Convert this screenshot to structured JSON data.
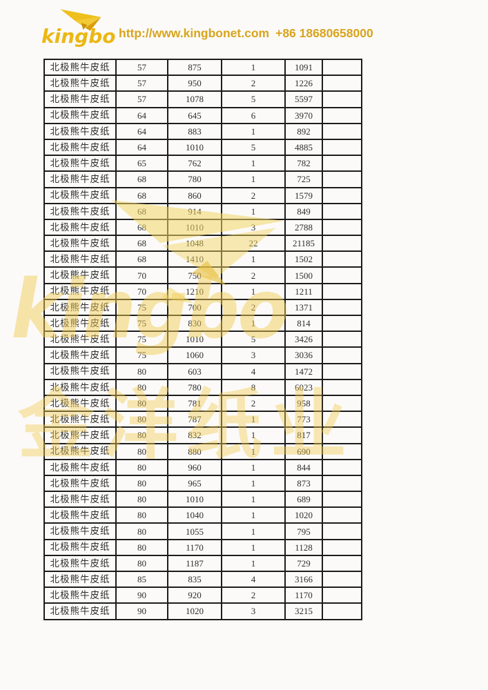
{
  "header": {
    "logo_text": "kingbo",
    "website": "http://www.kingbonet.com",
    "phone": "+86 18680658000"
  },
  "watermarks": {
    "script_text": "kingbo",
    "cjk_text": "金洋纸业"
  },
  "colors": {
    "brand_gold": "#ecb714",
    "contact_text": "#d8a41c",
    "watermark_yellow": "#f2cc52",
    "table_border": "#1c1c1c"
  },
  "table": {
    "rows": [
      [
        "北极熊牛皮纸",
        "57",
        "875",
        "1",
        "1091",
        ""
      ],
      [
        "北极熊牛皮纸",
        "57",
        "950",
        "2",
        "1226",
        ""
      ],
      [
        "北极熊牛皮纸",
        "57",
        "1078",
        "5",
        "5597",
        ""
      ],
      [
        "北极熊牛皮纸",
        "64",
        "645",
        "6",
        "3970",
        ""
      ],
      [
        "北极熊牛皮纸",
        "64",
        "883",
        "1",
        "892",
        ""
      ],
      [
        "北极熊牛皮纸",
        "64",
        "1010",
        "5",
        "4885",
        ""
      ],
      [
        "北极熊牛皮纸",
        "65",
        "762",
        "1",
        "782",
        ""
      ],
      [
        "北极熊牛皮纸",
        "68",
        "780",
        "1",
        "725",
        ""
      ],
      [
        "北极熊牛皮纸",
        "68",
        "860",
        "2",
        "1579",
        ""
      ],
      [
        "北极熊牛皮纸",
        "68",
        "914",
        "1",
        "849",
        ""
      ],
      [
        "北极熊牛皮纸",
        "68",
        "1010",
        "3",
        "2788",
        ""
      ],
      [
        "北极熊牛皮纸",
        "68",
        "1048",
        "22",
        "21185",
        ""
      ],
      [
        "北极熊牛皮纸",
        "68",
        "1410",
        "1",
        "1502",
        ""
      ],
      [
        "北极熊牛皮纸",
        "70",
        "750",
        "2",
        "1500",
        ""
      ],
      [
        "北极熊牛皮纸",
        "70",
        "1210",
        "1",
        "1211",
        ""
      ],
      [
        "北极熊牛皮纸",
        "75",
        "700",
        "2",
        "1371",
        ""
      ],
      [
        "北极熊牛皮纸",
        "75",
        "830",
        "1",
        "814",
        ""
      ],
      [
        "北极熊牛皮纸",
        "75",
        "1010",
        "5",
        "3426",
        ""
      ],
      [
        "北极熊牛皮纸",
        "75",
        "1060",
        "3",
        "3036",
        ""
      ],
      [
        "北极熊牛皮纸",
        "80",
        "603",
        "4",
        "1472",
        ""
      ],
      [
        "北极熊牛皮纸",
        "80",
        "780",
        "8",
        "6023",
        ""
      ],
      [
        "北极熊牛皮纸",
        "80",
        "781",
        "2",
        "958",
        ""
      ],
      [
        "北极熊牛皮纸",
        "80",
        "787",
        "1",
        "773",
        ""
      ],
      [
        "北极熊牛皮纸",
        "80",
        "832",
        "1",
        "817",
        ""
      ],
      [
        "北极熊牛皮纸",
        "80",
        "880",
        "1",
        "690",
        ""
      ],
      [
        "北极熊牛皮纸",
        "80",
        "960",
        "1",
        "844",
        ""
      ],
      [
        "北极熊牛皮纸",
        "80",
        "965",
        "1",
        "873",
        ""
      ],
      [
        "北极熊牛皮纸",
        "80",
        "1010",
        "1",
        "689",
        ""
      ],
      [
        "北极熊牛皮纸",
        "80",
        "1040",
        "1",
        "1020",
        ""
      ],
      [
        "北极熊牛皮纸",
        "80",
        "1055",
        "1",
        "795",
        ""
      ],
      [
        "北极熊牛皮纸",
        "80",
        "1170",
        "1",
        "1128",
        ""
      ],
      [
        "北极熊牛皮纸",
        "80",
        "1187",
        "1",
        "729",
        ""
      ],
      [
        "北极熊牛皮纸",
        "85",
        "835",
        "4",
        "3166",
        ""
      ],
      [
        "北极熊牛皮纸",
        "90",
        "920",
        "2",
        "1170",
        ""
      ],
      [
        "北极熊牛皮纸",
        "90",
        "1020",
        "3",
        "3215",
        ""
      ]
    ]
  }
}
